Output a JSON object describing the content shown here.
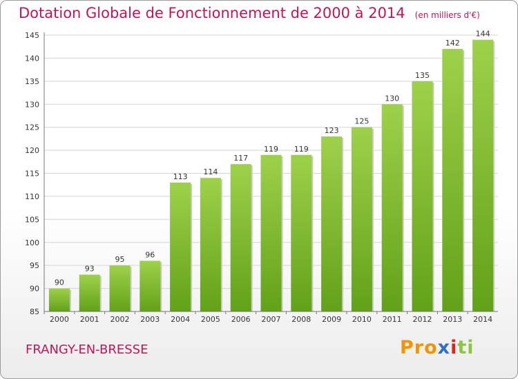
{
  "chart_data": {
    "type": "bar",
    "title": "Dotation Globale de Fonctionnement de 2000 à 2014",
    "subtitle": "(en milliers d'€)",
    "categories": [
      "2000",
      "2001",
      "2002",
      "2003",
      "2004",
      "2005",
      "2006",
      "2007",
      "2008",
      "2009",
      "2010",
      "2011",
      "2012",
      "2013",
      "2014"
    ],
    "values": [
      90,
      93,
      95,
      96,
      113,
      114,
      117,
      119,
      119,
      123,
      125,
      130,
      135,
      142,
      144
    ],
    "ylim": [
      85,
      145
    ],
    "yticks": [
      85,
      90,
      95,
      100,
      105,
      110,
      115,
      120,
      125,
      130,
      135,
      140,
      145
    ],
    "grid": true,
    "bar_color": "#7cb92a",
    "xlabel": "",
    "ylabel": ""
  },
  "footer": {
    "place_name": "FRANGY-EN-BRESSE",
    "logo": {
      "part1": "Pro",
      "part2": "x",
      "part3": "i",
      "part4": "ti"
    }
  }
}
